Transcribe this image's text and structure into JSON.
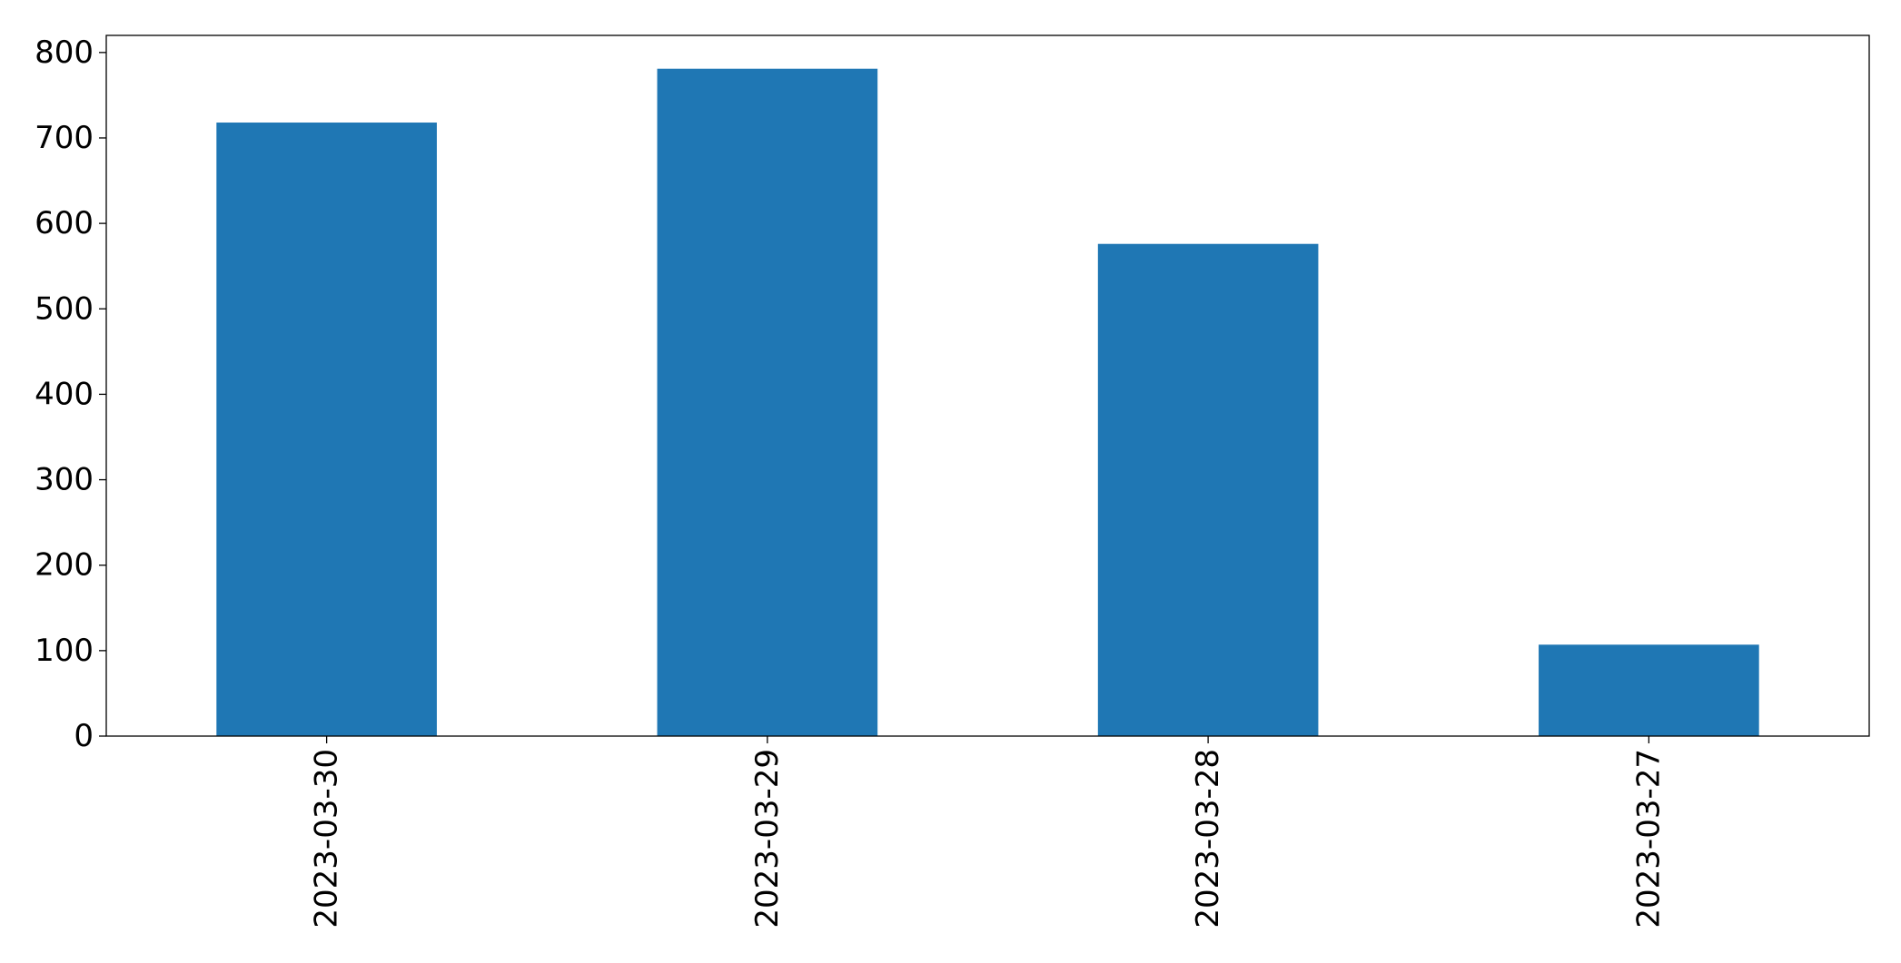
{
  "chart_data": {
    "type": "bar",
    "categories": [
      "2023-03-30",
      "2023-03-29",
      "2023-03-28",
      "2023-03-27"
    ],
    "values": [
      718,
      781,
      576,
      107
    ],
    "ylim": [
      0,
      820
    ],
    "yticks": [
      0,
      100,
      200,
      300,
      400,
      500,
      600,
      700,
      800
    ],
    "title": "",
    "xlabel": "",
    "ylabel": "",
    "grid": false,
    "legend": null,
    "bar_color": "#1f77b4"
  }
}
